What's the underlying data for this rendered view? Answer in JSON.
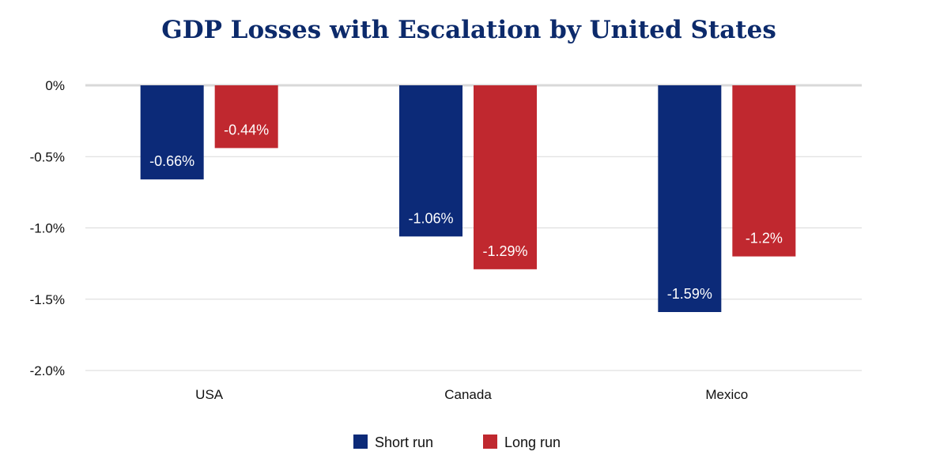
{
  "chart_data": {
    "type": "bar",
    "title": "GDP Losses with Escalation by United States",
    "xlabel": "",
    "ylabel": "",
    "categories": [
      "USA",
      "Canada",
      "Mexico"
    ],
    "series": [
      {
        "name": "Short run",
        "color": "#0c2a78",
        "values": [
          -0.66,
          -1.06,
          -1.59
        ],
        "labels": [
          "-0.66%",
          "-1.06%",
          "-1.59%"
        ]
      },
      {
        "name": "Long run",
        "color": "#c0282f",
        "values": [
          -0.44,
          -1.29,
          -1.2
        ],
        "labels": [
          "-0.44%",
          "-1.29%",
          "-1.2%"
        ]
      }
    ],
    "ylim": [
      -2.0,
      0
    ],
    "yticks": [
      0,
      -0.5,
      -1.0,
      -1.5,
      -2.0
    ],
    "ytick_labels": [
      "0%",
      "-0.5%",
      "-1.0%",
      "-1.5%",
      "-2.0%"
    ],
    "grid": true,
    "legend_position": "bottom-center",
    "title_color": "#0c2a6b"
  }
}
